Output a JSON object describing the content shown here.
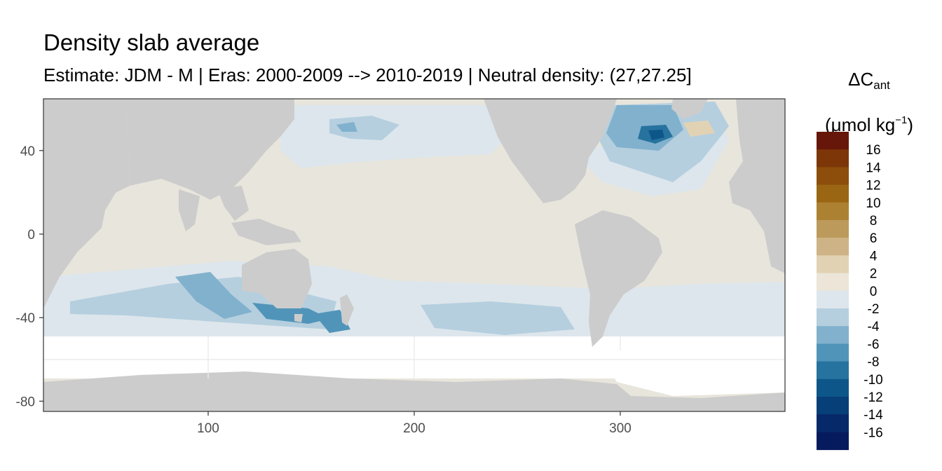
{
  "title": "Density slab average",
  "subtitle": "Estimate: JDM - M | Eras: 2000-2009 --> 2010-2019 | Neutral density: (27,27.25]",
  "legend": {
    "symbol": "ΔC",
    "symbol_sub": "ant",
    "unit_pre": "(μmol kg",
    "unit_sup": "−1",
    "unit_post": ")",
    "bins": [
      {
        "label": "16",
        "color": "#67170a"
      },
      {
        "label": "14",
        "color": "#7d3607"
      },
      {
        "label": "12",
        "color": "#8c4e0a"
      },
      {
        "label": "10",
        "color": "#9a6614"
      },
      {
        "label": "8",
        "color": "#ad8132"
      },
      {
        "label": "6",
        "color": "#bc9a5b"
      },
      {
        "label": "4",
        "color": "#ceb386"
      },
      {
        "label": "2",
        "color": "#e2d2b4"
      },
      {
        "label": "0",
        "color": "#ece5d8"
      },
      {
        "label": "-2",
        "color": "#dde6ec"
      },
      {
        "label": "-4",
        "color": "#b5cfdf"
      },
      {
        "label": "-6",
        "color": "#81b1cd"
      },
      {
        "label": "-8",
        "color": "#5194b9"
      },
      {
        "label": "-10",
        "color": "#27739f"
      },
      {
        "label": "-12",
        "color": "#0d5689"
      },
      {
        "label": "-14",
        "color": "#073f78"
      },
      {
        "label": "-16",
        "color": "#06296a"
      },
      {
        "label": "",
        "color": "#061b5d"
      }
    ]
  },
  "axes": {
    "x_ticks": [
      "100",
      "200",
      "300"
    ],
    "y_ticks": [
      "40",
      "0",
      "-40",
      "-80"
    ]
  },
  "colors": {
    "land": "#cccccc",
    "panel_border": "#333333",
    "grid": "#ebebeb",
    "missing": "#ffffff"
  }
}
